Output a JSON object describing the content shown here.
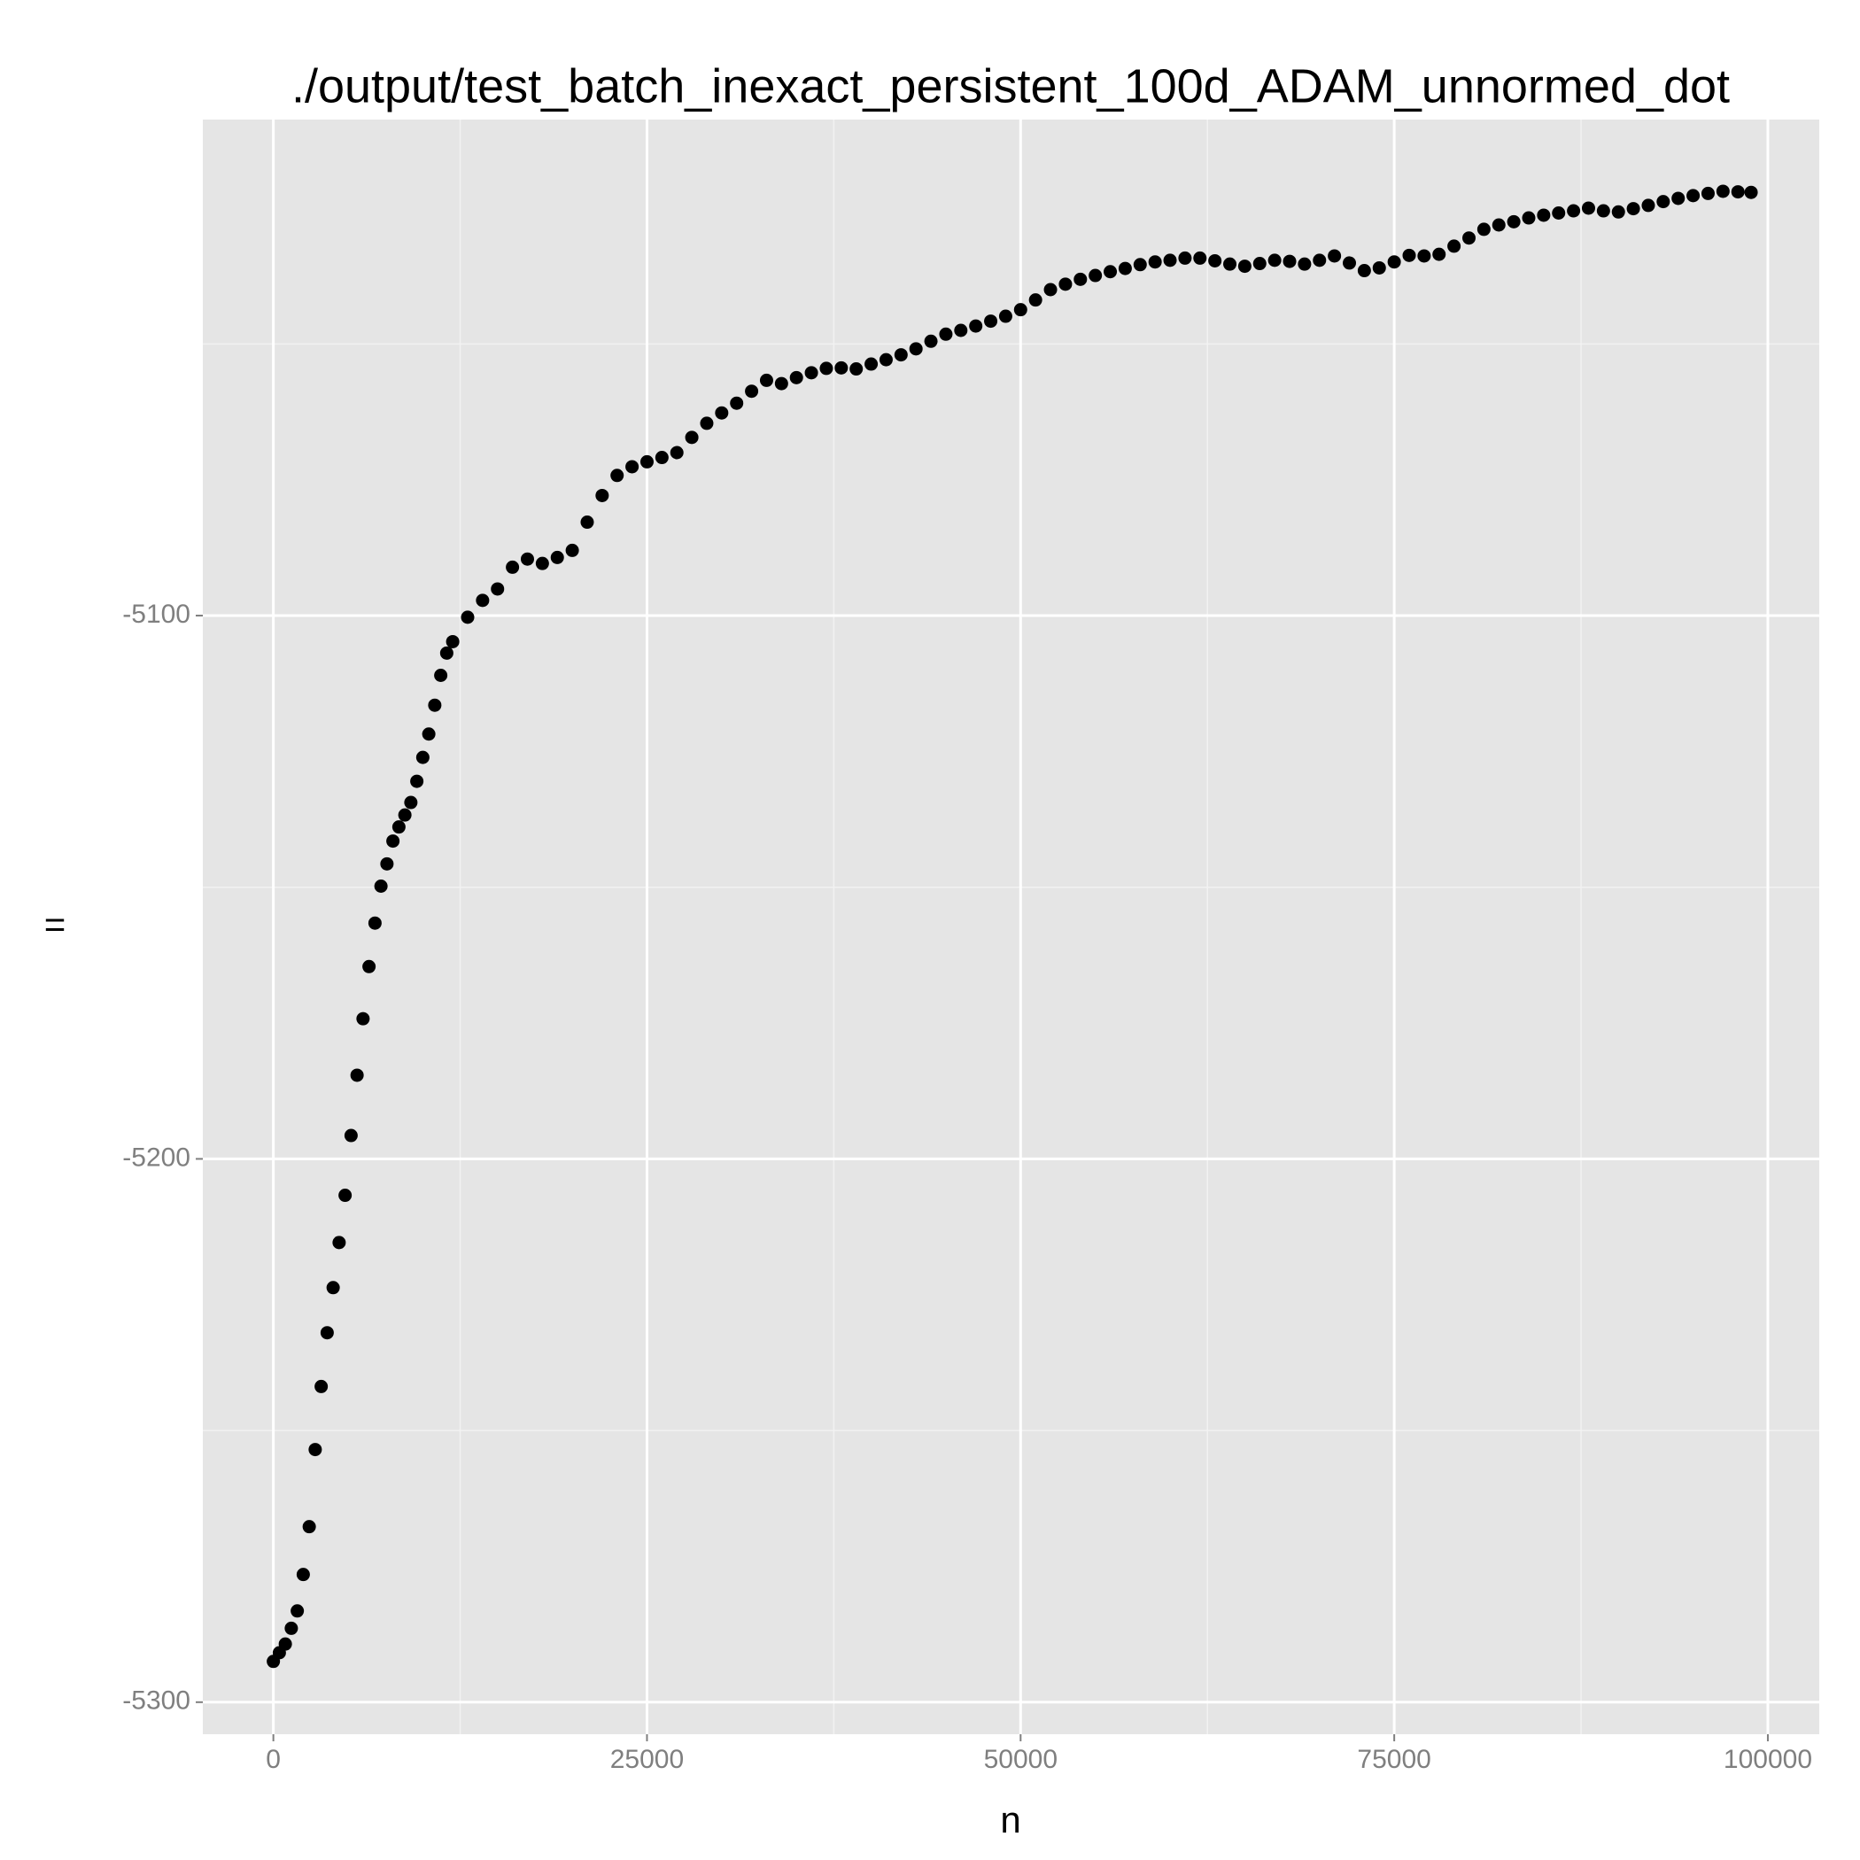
{
  "chart_data": {
    "type": "scatter",
    "title": "./output/test_batch_inexact_persistent_100d_ADAM_unnormed_dot",
    "xlabel": "n",
    "ylabel": "=",
    "color": "#000000",
    "x": [
      0,
      400,
      800,
      1200,
      1600,
      2000,
      2400,
      2800,
      3200,
      3600,
      4000,
      4400,
      4800,
      5200,
      5600,
      6000,
      6400,
      6800,
      7200,
      7600,
      8000,
      8400,
      8800,
      9200,
      9600,
      10000,
      10400,
      10800,
      11200,
      11600,
      12000,
      13000,
      14000,
      15000,
      16000,
      17000,
      18000,
      19000,
      20000,
      21000,
      22000,
      23000,
      24000,
      25000,
      26000,
      27000,
      28000,
      29000,
      30000,
      31000,
      32000,
      33000,
      34000,
      35000,
      36000,
      37000,
      38000,
      39000,
      40000,
      41000,
      42000,
      43000,
      44000,
      45000,
      46000,
      47000,
      48000,
      49000,
      50000,
      51000,
      52000,
      53000,
      54000,
      55000,
      56000,
      57000,
      58000,
      59000,
      60000,
      61000,
      62000,
      63000,
      64000,
      65000,
      66000,
      67000,
      68000,
      69000,
      70000,
      71000,
      72000,
      73000,
      74000,
      75000,
      76000,
      77000,
      78000,
      79000,
      80000,
      81000,
      82000,
      83000,
      84000,
      85000,
      86000,
      87000,
      88000,
      89000,
      90000,
      91000,
      92000,
      93000,
      94000,
      95000,
      96000,
      97000,
      98000,
      98880
    ],
    "values": [
      -5292.5,
      -5290.9,
      -5289.3,
      -5286.4,
      -5283.2,
      -5276.5,
      -5267.7,
      -5253.5,
      -5241.9,
      -5232,
      -5223.7,
      -5215.4,
      -5206.7,
      -5195.7,
      -5184.6,
      -5174.2,
      -5164.6,
      -5156.6,
      -5149.8,
      -5145.7,
      -5141.5,
      -5138.9,
      -5136.7,
      -5134.4,
      -5130.5,
      -5126.1,
      -5121.8,
      -5116.5,
      -5111,
      -5106.9,
      -5104.8,
      -5100.3,
      -5097.2,
      -5095.1,
      -5091.1,
      -5089.6,
      -5090.4,
      -5089.3,
      -5088,
      -5082.8,
      -5077.9,
      -5074.2,
      -5072.6,
      -5071.7,
      -5070.9,
      -5070,
      -5067.2,
      -5064.6,
      -5062.7,
      -5060.9,
      -5058.7,
      -5056.7,
      -5057.3,
      -5056.2,
      -5055.3,
      -5054.5,
      -5054.4,
      -5054.6,
      -5053.7,
      -5052.9,
      -5052,
      -5050.9,
      -5049.5,
      -5048.2,
      -5047.5,
      -5046.7,
      -5045.8,
      -5044.9,
      -5043.7,
      -5041.9,
      -5040,
      -5039,
      -5038.1,
      -5037.4,
      -5036.7,
      -5036.1,
      -5035.4,
      -5034.9,
      -5034.6,
      -5034.2,
      -5034.2,
      -5034.7,
      -5035.3,
      -5035.7,
      -5035.2,
      -5034.6,
      -5034.8,
      -5035.3,
      -5034.6,
      -5033.8,
      -5035.1,
      -5036.5,
      -5036,
      -5034.9,
      -5033.7,
      -5033.8,
      -5033.5,
      -5032,
      -5030.5,
      -5028.9,
      -5028.1,
      -5027.5,
      -5026.8,
      -5026.3,
      -5025.9,
      -5025.5,
      -5025,
      -5025.5,
      -5025.7,
      -5025.1,
      -5024.5,
      -5023.8,
      -5023.2,
      -5022.7,
      -5022.3,
      -5021.9,
      -5022,
      -5022.1
    ],
    "xlim": [
      -4720,
      103440
    ],
    "ylim": [
      -5305.9,
      -5008.7
    ],
    "xticks": [
      0,
      25000,
      50000,
      75000,
      100000
    ],
    "yticks": [
      -5300,
      -5200,
      -5100
    ],
    "xminor": [
      12500,
      37500,
      62500,
      87500
    ],
    "yminor": [
      -5250,
      -5150,
      -5050
    ],
    "grid": true
  }
}
